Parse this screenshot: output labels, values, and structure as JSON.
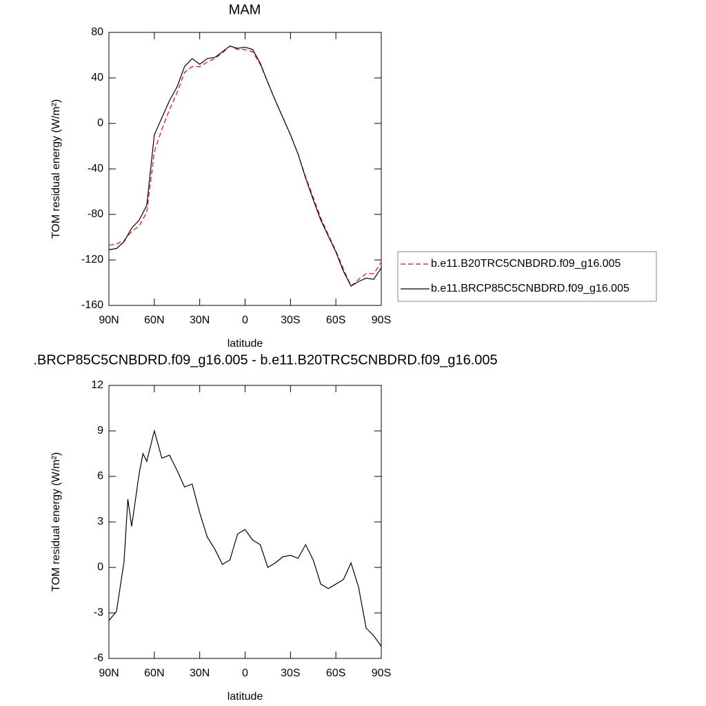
{
  "chart_data": [
    {
      "type": "line",
      "title": "MAM",
      "xlabel": "latitude",
      "ylabel": "TOM residual energy (W/m²)",
      "x": [
        90,
        85,
        80,
        75,
        70,
        65,
        60,
        55,
        50,
        45,
        40,
        35,
        30,
        25,
        20,
        15,
        10,
        5,
        0,
        -5,
        -10,
        -15,
        -20,
        -25,
        -30,
        -35,
        -40,
        -45,
        -50,
        -55,
        -60,
        -65,
        -70,
        -75,
        -80,
        -85,
        -90
      ],
      "xlim": [
        90,
        -90
      ],
      "xticks": [
        {
          "value": 90,
          "label": "90N"
        },
        {
          "value": 60,
          "label": "60N"
        },
        {
          "value": 30,
          "label": "30N"
        },
        0,
        {
          "value": -30,
          "label": "30S"
        },
        {
          "value": -60,
          "label": "60S"
        },
        {
          "value": -90,
          "label": "90S"
        }
      ],
      "ylim": [
        -160,
        80
      ],
      "yticks": [
        -160,
        -120,
        -80,
        -40,
        0,
        40,
        80
      ],
      "legend_position": "right",
      "series": [
        {
          "name": "b.e11.B20TRC5CNBDRD.f09_g16.005",
          "color": "#ff0000",
          "style": "dashed",
          "values": [
            -107,
            -106,
            -103,
            -95,
            -90,
            -78,
            -25,
            -5,
            12,
            27,
            45,
            50,
            50,
            54,
            57,
            62,
            68,
            65,
            65,
            63,
            52,
            36,
            20,
            5,
            -10,
            -27,
            -47,
            -65,
            -83,
            -98,
            -112,
            -128,
            -143,
            -137,
            -132,
            -132,
            -122
          ]
        },
        {
          "name": "b.e11.BRCP85C5CNBDRD.f09_g16.005",
          "color": "#000000",
          "style": "solid",
          "values": [
            -111,
            -110,
            -104,
            -92,
            -85,
            -72,
            -10,
            5,
            20,
            32,
            50,
            57,
            52,
            57,
            58,
            63,
            68,
            66,
            67,
            65,
            53,
            36,
            20,
            5,
            -10,
            -27,
            -48,
            -67,
            -85,
            -99,
            -113,
            -130,
            -143,
            -139,
            -136,
            -137,
            -127
          ]
        }
      ]
    },
    {
      "type": "line",
      "title": ".BRCP85C5CNBDRD.f09_g16.005 - b.e11.B20TRC5CNBDRD.f09_g16.005",
      "xlabel": "latitude",
      "ylabel": "TOM residual energy (W/m²)",
      "x": [
        90,
        85,
        80,
        77.5,
        75,
        70,
        67.5,
        65,
        60,
        55,
        50,
        45,
        40,
        35,
        30,
        25,
        20,
        15,
        10,
        5,
        0,
        -5,
        -10,
        -15,
        -20,
        -25,
        -30,
        -35,
        -40,
        -45,
        -50,
        -55,
        -60,
        -65,
        -70,
        -75,
        -80,
        -85,
        -90
      ],
      "xlim": [
        90,
        -90
      ],
      "xticks": [
        {
          "value": 90,
          "label": "90N"
        },
        {
          "value": 60,
          "label": "60N"
        },
        {
          "value": 30,
          "label": "30N"
        },
        0,
        {
          "value": -30,
          "label": "30S"
        },
        {
          "value": -60,
          "label": "60S"
        },
        {
          "value": -90,
          "label": "90S"
        }
      ],
      "ylim": [
        -6,
        12
      ],
      "yticks": [
        -6,
        -3,
        0,
        3,
        6,
        9,
        12
      ],
      "series": [
        {
          "color": "#000000",
          "style": "solid",
          "values": [
            -3.5,
            -2.9,
            0.4,
            4.5,
            2.7,
            6.2,
            7.5,
            7.0,
            9.0,
            7.2,
            7.4,
            6.4,
            5.3,
            5.5,
            3.6,
            2.0,
            1.2,
            0.2,
            0.5,
            2.2,
            2.5,
            1.8,
            1.5,
            0,
            0.3,
            0.7,
            0.8,
            0.6,
            1.5,
            0.5,
            -1.1,
            -1.4,
            -1.1,
            -0.8,
            0.3,
            -1.3,
            -4.0,
            -4.5,
            -5.2
          ]
        }
      ]
    }
  ]
}
